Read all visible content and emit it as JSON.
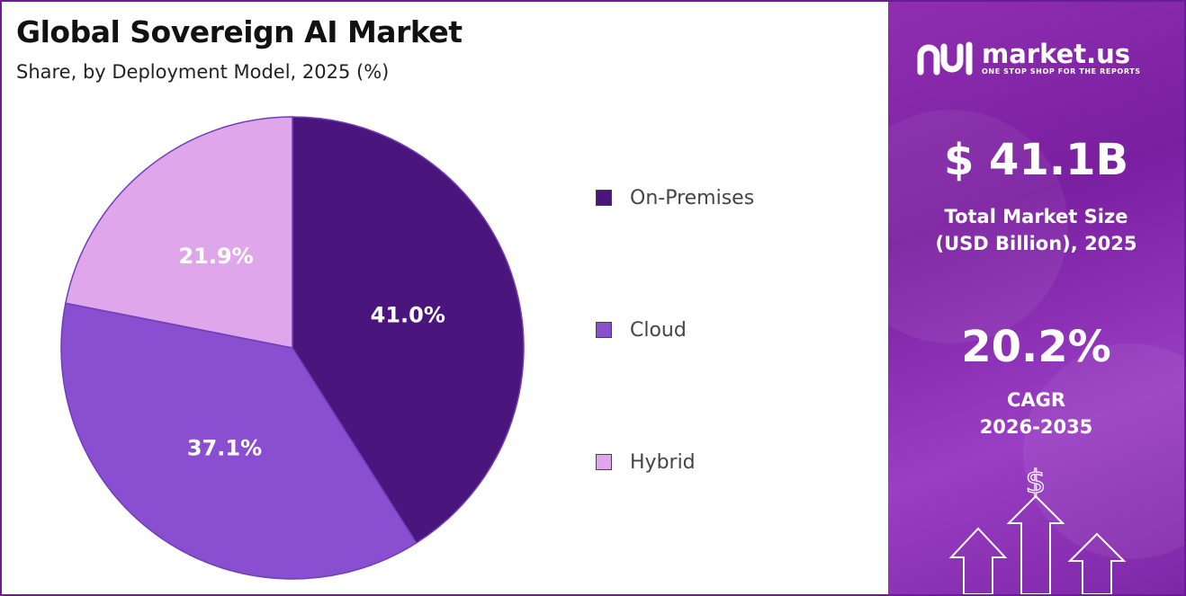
{
  "header": {
    "title": "Global Sovereign AI Market",
    "subtitle": "Share, by Deployment Model, 2025 (%)"
  },
  "chart_data": {
    "type": "pie",
    "title": "Global Sovereign AI Market",
    "subtitle": "Share, by Deployment Model, 2025 (%)",
    "categories": [
      "On-Premises",
      "Cloud",
      "Hybrid"
    ],
    "values": [
      41.0,
      37.1,
      21.9
    ],
    "labels": [
      "41.0%",
      "37.1%",
      "21.9%"
    ],
    "colors": [
      "#4b157e",
      "#8a4fd1",
      "#e0a6ec"
    ],
    "legend_position": "right"
  },
  "brand": {
    "name": "market.us",
    "tagline": "ONE STOP SHOP FOR THE REPORTS"
  },
  "stats": {
    "market_size_value": "$ 41.1B",
    "market_size_label_line1": "Total Market Size",
    "market_size_label_line2": "(USD Billion), 2025",
    "cagr_value": "20.2%",
    "cagr_label_line1": "CAGR",
    "cagr_label_line2": "2026-2035"
  },
  "icons": {
    "brand_logo": "market-us-logo-icon",
    "growth": "dollar-growth-arrows-icon"
  },
  "theme": {
    "panel_color": "#8e2fb0",
    "frame_color": "#6a1b9a"
  }
}
